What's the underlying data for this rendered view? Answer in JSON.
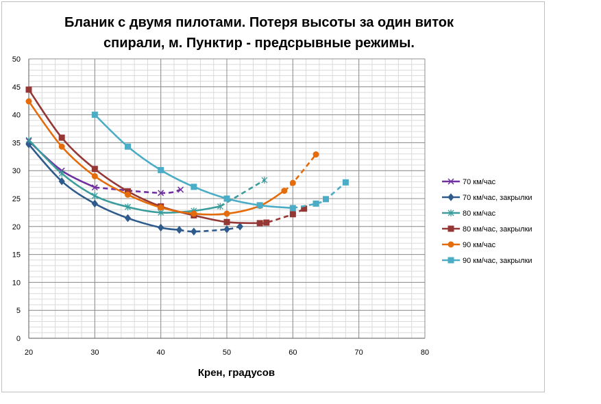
{
  "chart_data": {
    "type": "line",
    "title_line1": "Бланик с двумя пилотами. Потеря высоты за один виток",
    "title_line2": "спирали, м. Пунктир - предсрывные режимы.",
    "xlabel": "Крен, градусов",
    "ylabel": "",
    "xlim": [
      20,
      80
    ],
    "ylim": [
      0,
      50
    ],
    "xticks": [
      20,
      30,
      40,
      50,
      60,
      70,
      80
    ],
    "yticks": [
      0,
      5,
      10,
      15,
      20,
      25,
      30,
      35,
      40,
      45,
      50
    ],
    "grid": true,
    "legend_position": "right",
    "series": [
      {
        "name": "70 км/час",
        "color": "#7030a0",
        "marker": "x",
        "points": [
          [
            20,
            35.3
          ],
          [
            25,
            30.0
          ],
          [
            30,
            27.0
          ],
          [
            40,
            26.0
          ],
          [
            43,
            26.6
          ]
        ],
        "dashed_from": 2
      },
      {
        "name": "70 км/час, закрылки",
        "color": "#2e5b8c",
        "marker": "diamond",
        "points": [
          [
            20,
            34.7
          ],
          [
            25,
            28.1
          ],
          [
            30,
            24.1
          ],
          [
            35,
            21.5
          ],
          [
            40,
            19.8
          ],
          [
            42.8,
            19.4
          ],
          [
            45,
            19.1
          ],
          [
            50,
            19.5
          ],
          [
            52,
            20.0
          ]
        ],
        "dashed_from": 5
      },
      {
        "name": "80 км/час",
        "color": "#3b9c9c",
        "marker": "star",
        "points": [
          [
            20,
            35.5
          ],
          [
            25,
            29.5
          ],
          [
            30,
            25.5
          ],
          [
            35,
            23.5
          ],
          [
            40,
            22.5
          ],
          [
            45,
            22.8
          ],
          [
            49,
            23.6
          ],
          [
            55.7,
            28.3
          ]
        ],
        "dashed_from": 6
      },
      {
        "name": "80 км/час, закрылки",
        "color": "#953735",
        "marker": "square",
        "points": [
          [
            20,
            44.5
          ],
          [
            25,
            35.9
          ],
          [
            30,
            30.3
          ],
          [
            35,
            26.3
          ],
          [
            40,
            23.6
          ],
          [
            45,
            22.0
          ],
          [
            50,
            20.8
          ],
          [
            55,
            20.6
          ],
          [
            56,
            20.7
          ],
          [
            60,
            22.2
          ],
          [
            61.7,
            23.2
          ]
        ],
        "dashed_from": 7
      },
      {
        "name": "90 км/час",
        "color": "#e46c0a",
        "marker": "circle",
        "points": [
          [
            20,
            42.4
          ],
          [
            25,
            34.3
          ],
          [
            30,
            29.0
          ],
          [
            35,
            25.7
          ],
          [
            40,
            23.4
          ],
          [
            45,
            22.3
          ],
          [
            50,
            22.3
          ],
          [
            55,
            23.7
          ],
          [
            58.7,
            26.4
          ],
          [
            60,
            27.8
          ],
          [
            63.5,
            32.9
          ]
        ],
        "dashed_from": 8
      },
      {
        "name": "90 км/час, закрылки",
        "color": "#4bacc6",
        "marker": "square",
        "points": [
          [
            30,
            40.0
          ],
          [
            35,
            34.3
          ],
          [
            40,
            30.1
          ],
          [
            45,
            27.1
          ],
          [
            50,
            25.0
          ],
          [
            55,
            23.8
          ],
          [
            60,
            23.3
          ],
          [
            63.5,
            24.1
          ],
          [
            65,
            24.9
          ],
          [
            68,
            27.9
          ]
        ],
        "dashed_from": 6
      }
    ]
  }
}
